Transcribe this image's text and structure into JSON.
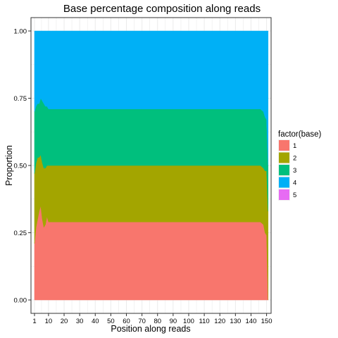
{
  "chart_data": {
    "type": "area",
    "title": "Base percentage composition along reads",
    "xlabel": "Position along reads",
    "ylabel": "Proportion",
    "xlim": [
      1,
      152
    ],
    "ylim": [
      0,
      1
    ],
    "x_ticks": [
      1,
      10,
      20,
      30,
      40,
      50,
      60,
      70,
      80,
      90,
      100,
      110,
      120,
      130,
      140,
      150
    ],
    "y_ticks": [
      "0.00",
      "0.25",
      "0.50",
      "0.75",
      "1.00"
    ],
    "y_tick_values": [
      0,
      0.25,
      0.5,
      0.75,
      1.0
    ],
    "stacking": "fill",
    "grid": true,
    "legend": {
      "title": "factor(base)",
      "placement": "right",
      "entries": [
        "1",
        "2",
        "3",
        "4",
        "5"
      ]
    },
    "colors": [
      "#F8766D",
      "#A3A500",
      "#00BF7D",
      "#00B0F6",
      "#E76BF3"
    ],
    "series": [
      {
        "name": "1",
        "x": [
          1,
          2,
          3,
          4,
          5,
          6,
          7,
          8,
          9,
          10,
          11,
          12,
          15,
          20,
          25,
          30,
          40,
          50,
          60,
          70,
          80,
          90,
          100,
          110,
          120,
          130,
          140,
          146,
          148,
          149,
          150,
          151
        ],
        "values": [
          0.21,
          0.27,
          0.3,
          0.33,
          0.35,
          0.3,
          0.27,
          0.28,
          0.31,
          0.29,
          0.29,
          0.29,
          0.29,
          0.29,
          0.29,
          0.29,
          0.29,
          0.29,
          0.29,
          0.29,
          0.29,
          0.29,
          0.29,
          0.29,
          0.29,
          0.29,
          0.29,
          0.29,
          0.28,
          0.25,
          0.24,
          0.0
        ]
      },
      {
        "name": "2",
        "x": [
          1,
          2,
          3,
          4,
          5,
          6,
          7,
          8,
          9,
          10,
          11,
          12,
          15,
          20,
          25,
          30,
          40,
          50,
          60,
          70,
          80,
          90,
          100,
          110,
          120,
          130,
          140,
          146,
          148,
          149,
          150,
          151
        ],
        "values": [
          0.26,
          0.24,
          0.23,
          0.2,
          0.19,
          0.21,
          0.22,
          0.21,
          0.19,
          0.21,
          0.21,
          0.21,
          0.21,
          0.21,
          0.21,
          0.21,
          0.21,
          0.21,
          0.21,
          0.21,
          0.21,
          0.21,
          0.21,
          0.21,
          0.21,
          0.21,
          0.21,
          0.21,
          0.21,
          0.23,
          0.24,
          0.33
        ]
      },
      {
        "name": "3",
        "x": [
          1,
          2,
          3,
          4,
          5,
          6,
          7,
          8,
          9,
          10,
          11,
          12,
          15,
          20,
          25,
          30,
          40,
          50,
          60,
          70,
          80,
          90,
          100,
          110,
          120,
          130,
          140,
          146,
          148,
          149,
          150,
          151
        ],
        "values": [
          0.23,
          0.21,
          0.2,
          0.2,
          0.21,
          0.23,
          0.24,
          0.23,
          0.22,
          0.21,
          0.21,
          0.21,
          0.21,
          0.21,
          0.21,
          0.21,
          0.21,
          0.21,
          0.21,
          0.21,
          0.21,
          0.21,
          0.21,
          0.21,
          0.21,
          0.21,
          0.21,
          0.21,
          0.21,
          0.2,
          0.19,
          0.17
        ]
      },
      {
        "name": "4",
        "x": [
          1,
          2,
          3,
          4,
          5,
          6,
          7,
          8,
          9,
          10,
          11,
          12,
          15,
          20,
          25,
          30,
          40,
          50,
          60,
          70,
          80,
          90,
          100,
          110,
          120,
          130,
          140,
          146,
          148,
          149,
          150,
          151
        ],
        "values": [
          0.3,
          0.28,
          0.27,
          0.27,
          0.25,
          0.26,
          0.27,
          0.28,
          0.28,
          0.29,
          0.29,
          0.29,
          0.29,
          0.29,
          0.29,
          0.29,
          0.29,
          0.29,
          0.29,
          0.29,
          0.29,
          0.29,
          0.29,
          0.29,
          0.29,
          0.29,
          0.29,
          0.29,
          0.3,
          0.32,
          0.33,
          0.5
        ]
      },
      {
        "name": "5",
        "x": [
          1,
          151
        ],
        "values": [
          0.0,
          0.0
        ]
      }
    ]
  }
}
